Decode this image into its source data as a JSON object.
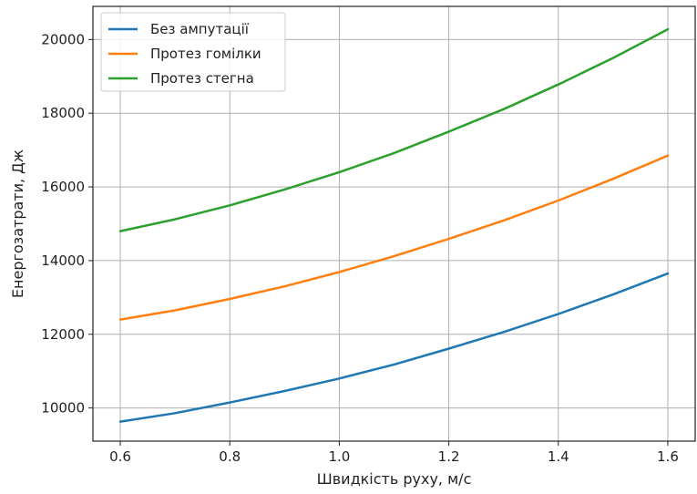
{
  "chart_data": {
    "type": "line",
    "title": "",
    "xlabel": "Швидкість руху, м/с",
    "ylabel": "Енергозатрати, Дж",
    "xlim": [
      0.55,
      1.65
    ],
    "ylim": [
      9100,
      20900
    ],
    "xticks": [
      "0.6",
      "0.8",
      "1.0",
      "1.2",
      "1.4",
      "1.6"
    ],
    "yticks": [
      "10000",
      "12000",
      "14000",
      "16000",
      "18000",
      "20000"
    ],
    "grid": true,
    "legend_position": "top-left",
    "x": [
      0.6,
      0.7,
      0.8,
      0.9,
      1.0,
      1.1,
      1.2,
      1.3,
      1.4,
      1.5,
      1.6
    ],
    "series": [
      {
        "name": "Без ампутації",
        "color": "#1f77b4",
        "values": [
          9630,
          9860,
          10150,
          10460,
          10800,
          11180,
          11610,
          12060,
          12550,
          13080,
          13650
        ]
      },
      {
        "name": "Протез гомілки",
        "color": "#ff7f0e",
        "values": [
          12400,
          12650,
          12960,
          13300,
          13690,
          14120,
          14590,
          15090,
          15630,
          16220,
          16850
        ]
      },
      {
        "name": "Протез стегна",
        "color": "#2ca02c",
        "values": [
          14800,
          15120,
          15500,
          15930,
          16400,
          16920,
          17500,
          18110,
          18780,
          19500,
          20280
        ]
      }
    ]
  }
}
